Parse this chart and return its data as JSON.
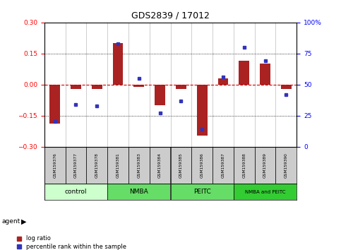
{
  "title": "GDS2839 / 17012",
  "samples": [
    "GSM159376",
    "GSM159377",
    "GSM159378",
    "GSM159381",
    "GSM159383",
    "GSM159384",
    "GSM159385",
    "GSM159386",
    "GSM159387",
    "GSM159388",
    "GSM159389",
    "GSM159390"
  ],
  "log_ratio": [
    -0.19,
    -0.02,
    -0.02,
    0.2,
    -0.01,
    -0.1,
    -0.02,
    -0.245,
    0.03,
    0.115,
    0.1,
    -0.02
  ],
  "percentile_rank": [
    20,
    34,
    33,
    83,
    55,
    27,
    37,
    14,
    56,
    80,
    69,
    42
  ],
  "group_labels": [
    "control",
    "NMBA",
    "PEITC",
    "NMBA and PEITC"
  ],
  "group_colors": [
    "#ccffcc",
    "#66dd66",
    "#66dd66",
    "#33cc33"
  ],
  "group_ranges": [
    [
      0,
      2
    ],
    [
      3,
      5
    ],
    [
      6,
      8
    ],
    [
      9,
      11
    ]
  ],
  "ylim": [
    -0.3,
    0.3
  ],
  "y2lim": [
    0,
    100
  ],
  "yticks": [
    -0.3,
    -0.15,
    0,
    0.15,
    0.3
  ],
  "y2ticks": [
    0,
    25,
    50,
    75,
    100
  ],
  "y2ticklabels": [
    "0",
    "25",
    "50",
    "75",
    "100%"
  ],
  "bar_color": "#aa2222",
  "dot_color": "#3333bb",
  "hline_color": "#cc0000",
  "bg_color": "#ffffff",
  "cell_color": "#cccccc",
  "title_fontsize": 9
}
